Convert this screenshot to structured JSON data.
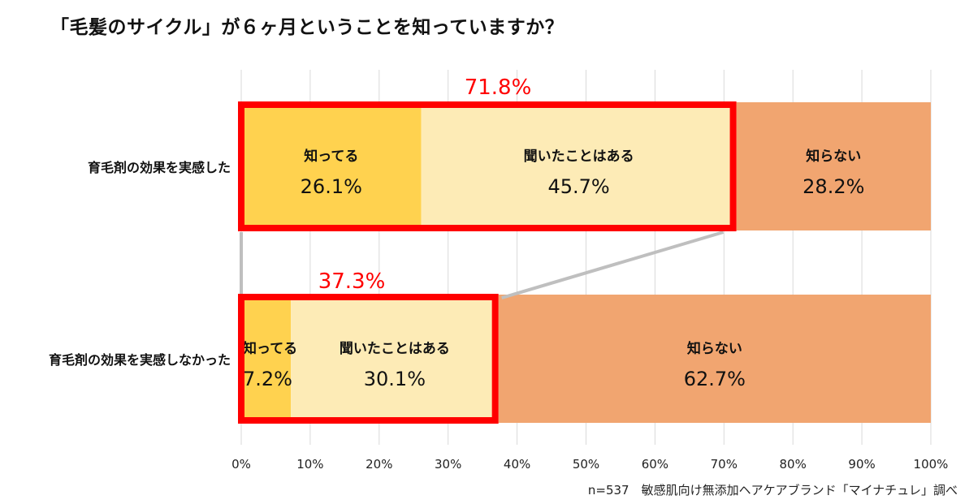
{
  "title": "「毛髪のサイクル」が６ヶ月ということを知っていますか？",
  "footnote": "n=537　敏感肌向け無添加ヘアケアブランド「マイナチュレ」調べ",
  "chart_data": {
    "type": "bar",
    "orientation": "horizontal",
    "stacked": true,
    "title": "「毛髪のサイクル」が６ヶ月ということを知っていますか？",
    "xlim": [
      0,
      100
    ],
    "x_ticks": [
      "0%",
      "10%",
      "20%",
      "30%",
      "40%",
      "50%",
      "60%",
      "70%",
      "80%",
      "90%",
      "100%"
    ],
    "grid": true,
    "categories": [
      "育毛剤の効果を実感した",
      "育毛剤の効果を実感しなかった"
    ],
    "series": [
      {
        "name": "知ってる",
        "values": [
          26.1,
          7.2
        ],
        "labels": [
          "26.1%",
          "7.2%"
        ],
        "color": "#FFD24F"
      },
      {
        "name": "聞いたことはある",
        "values": [
          45.7,
          30.1
        ],
        "labels": [
          "45.7%",
          "30.1%"
        ],
        "color": "#FDEBB6"
      },
      {
        "name": "知らない",
        "values": [
          28.2,
          62.7
        ],
        "labels": [
          "28.2%",
          "62.7%"
        ],
        "color": "#F1A570"
      }
    ],
    "annotations": [
      {
        "text": "71.8%",
        "value": 71.8,
        "color": "#FF0000"
      },
      {
        "text": "37.3%",
        "value": 37.3,
        "color": "#FF0000"
      }
    ],
    "highlight_color": "#FF0000",
    "connector_color": "#BFBFBF",
    "grid_color": "#D9D9D9"
  }
}
